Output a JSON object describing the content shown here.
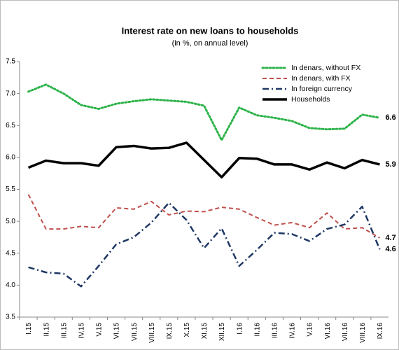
{
  "chart_data": {
    "type": "line",
    "title": "Interest rate on new loans to households",
    "subtitle": "(in %, on annual level)",
    "categories": [
      "I.15",
      "II.15",
      "III.15",
      "IV.15",
      "V.15",
      "VI.15",
      "VII.15",
      "VIII.15",
      "IX.15",
      "X.15",
      "XI.15",
      "XII.15",
      "I.16",
      "II.16",
      "III.16",
      "IV.16",
      "V.16",
      "VI.16",
      "VII.16",
      "VIII.16",
      "IX.16"
    ],
    "ylim": [
      3.5,
      7.5
    ],
    "yticks": [
      3.5,
      {
        "value": 4.0,
        "label": "4.0"
      },
      4.5,
      {
        "value": 5.0,
        "label": "5.0"
      },
      5.5,
      {
        "value": 6.0,
        "label": "6.0"
      },
      6.5,
      {
        "value": 7.0,
        "label": "7.0"
      },
      7.5
    ],
    "legend": "upper right",
    "series": [
      {
        "name": "In denars, without FX",
        "color": "#2db34a",
        "style": "dotted",
        "values": [
          7.03,
          7.14,
          7.0,
          6.82,
          6.76,
          6.84,
          6.88,
          6.91,
          6.89,
          6.87,
          6.81,
          6.27,
          6.78,
          6.66,
          6.62,
          6.57,
          6.46,
          6.44,
          6.45,
          6.67,
          6.62
        ],
        "value_labels": [
          null,
          null,
          null,
          null,
          null,
          null,
          null,
          null,
          null,
          null,
          null,
          null,
          null,
          null,
          null,
          null,
          null,
          null,
          null,
          null,
          "6.6"
        ]
      },
      {
        "name": "In denars, with FX",
        "color": "#c0504d",
        "style": "dashed",
        "values": [
          5.42,
          4.88,
          4.88,
          4.92,
          4.9,
          5.21,
          5.19,
          5.31,
          5.1,
          5.16,
          5.15,
          5.22,
          5.19,
          5.06,
          4.94,
          4.98,
          4.9,
          5.13,
          4.88,
          4.9,
          4.74
        ],
        "value_labels": [
          null,
          null,
          null,
          null,
          null,
          null,
          null,
          null,
          null,
          null,
          null,
          null,
          null,
          null,
          null,
          null,
          null,
          null,
          null,
          null,
          "4.7"
        ]
      },
      {
        "name": "In foreign currency",
        "color": "#1f3864",
        "style": "dashdot",
        "values": [
          4.28,
          4.2,
          4.18,
          3.98,
          4.3,
          4.64,
          4.75,
          4.98,
          5.29,
          5.02,
          4.58,
          4.89,
          4.3,
          4.55,
          4.82,
          4.8,
          4.69,
          4.88,
          4.95,
          5.23,
          4.56
        ],
        "value_labels": [
          null,
          null,
          null,
          null,
          null,
          null,
          null,
          null,
          null,
          null,
          null,
          null,
          null,
          null,
          null,
          null,
          null,
          null,
          null,
          null,
          "4.6"
        ]
      },
      {
        "name": "Households",
        "color": "#000000",
        "style": "solid",
        "values": [
          5.84,
          5.95,
          5.91,
          5.91,
          5.87,
          6.16,
          6.18,
          6.14,
          6.15,
          6.23,
          5.96,
          5.69,
          5.99,
          5.98,
          5.89,
          5.89,
          5.81,
          5.92,
          5.83,
          5.96,
          5.89
        ],
        "value_labels": [
          null,
          null,
          null,
          null,
          null,
          null,
          null,
          null,
          null,
          null,
          null,
          null,
          null,
          null,
          null,
          null,
          null,
          null,
          null,
          null,
          "5.9"
        ]
      }
    ]
  }
}
